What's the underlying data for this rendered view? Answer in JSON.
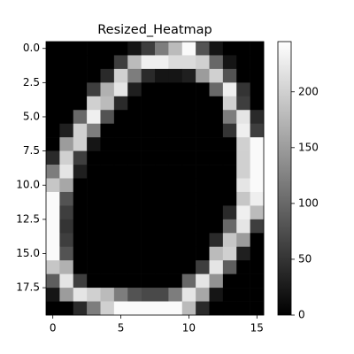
{
  "chart_data": {
    "type": "heatmap",
    "title": "Resized_Heatmap",
    "colormap": "gray",
    "z": [
      [
        0,
        0,
        0,
        0,
        0,
        0,
        20,
        60,
        120,
        180,
        240,
        80,
        20,
        0,
        0,
        0
      ],
      [
        0,
        0,
        0,
        0,
        0,
        60,
        180,
        230,
        230,
        210,
        210,
        200,
        100,
        20,
        0,
        0
      ],
      [
        0,
        0,
        0,
        0,
        40,
        200,
        120,
        40,
        20,
        20,
        30,
        150,
        200,
        80,
        0,
        0
      ],
      [
        0,
        0,
        0,
        60,
        170,
        220,
        30,
        0,
        0,
        0,
        0,
        0,
        100,
        230,
        50,
        0
      ],
      [
        0,
        0,
        0,
        200,
        180,
        40,
        0,
        0,
        0,
        0,
        0,
        0,
        0,
        200,
        60,
        0
      ],
      [
        0,
        0,
        100,
        230,
        80,
        0,
        0,
        0,
        0,
        0,
        0,
        0,
        0,
        120,
        220,
        40
      ],
      [
        0,
        30,
        200,
        120,
        0,
        0,
        0,
        0,
        0,
        0,
        0,
        0,
        0,
        50,
        230,
        60
      ],
      [
        0,
        150,
        200,
        20,
        0,
        0,
        0,
        0,
        0,
        0,
        0,
        0,
        0,
        0,
        200,
        240
      ],
      [
        40,
        200,
        60,
        0,
        0,
        0,
        0,
        0,
        0,
        0,
        0,
        0,
        0,
        0,
        200,
        240
      ],
      [
        120,
        220,
        30,
        0,
        0,
        0,
        0,
        0,
        0,
        0,
        0,
        0,
        0,
        0,
        200,
        240
      ],
      [
        190,
        160,
        0,
        0,
        0,
        0,
        0,
        0,
        0,
        0,
        0,
        0,
        0,
        0,
        220,
        240
      ],
      [
        240,
        80,
        0,
        0,
        0,
        0,
        0,
        0,
        0,
        0,
        0,
        0,
        0,
        0,
        190,
        230
      ],
      [
        240,
        60,
        0,
        0,
        0,
        0,
        0,
        0,
        0,
        0,
        0,
        0,
        0,
        40,
        230,
        180
      ],
      [
        240,
        50,
        0,
        0,
        0,
        0,
        0,
        0,
        0,
        0,
        0,
        0,
        0,
        100,
        220,
        60
      ],
      [
        240,
        60,
        0,
        0,
        0,
        0,
        0,
        0,
        0,
        0,
        0,
        0,
        40,
        190,
        150,
        0
      ],
      [
        240,
        80,
        0,
        0,
        0,
        0,
        0,
        0,
        0,
        0,
        0,
        0,
        180,
        200,
        30,
        0
      ],
      [
        190,
        170,
        0,
        0,
        0,
        0,
        0,
        0,
        0,
        0,
        0,
        60,
        220,
        90,
        0,
        0
      ],
      [
        90,
        220,
        60,
        0,
        0,
        0,
        0,
        0,
        0,
        0,
        100,
        220,
        140,
        0,
        0,
        0
      ],
      [
        20,
        150,
        220,
        200,
        180,
        120,
        80,
        70,
        70,
        120,
        220,
        160,
        20,
        0,
        0,
        0
      ],
      [
        0,
        0,
        40,
        120,
        200,
        240,
        240,
        240,
        240,
        240,
        180,
        40,
        0,
        0,
        0,
        0
      ]
    ],
    "xlim": [
      -0.5,
      15.5
    ],
    "ylim": [
      19.5,
      -0.5
    ],
    "xticks": [
      0,
      5,
      10,
      15
    ],
    "yticks": [
      {
        "value": 0,
        "label": "0.0"
      },
      {
        "value": 2.5,
        "label": "2.5"
      },
      {
        "value": 5,
        "label": "5.0"
      },
      {
        "value": 7.5,
        "label": "7.5"
      },
      {
        "value": 10,
        "label": "10.0"
      },
      {
        "value": 12.5,
        "label": "12.5"
      },
      {
        "value": 15,
        "label": "15.0"
      },
      {
        "value": 17.5,
        "label": "17.5"
      }
    ],
    "clim": [
      0,
      245
    ],
    "cticks": [
      0,
      50,
      100,
      150,
      200
    ]
  }
}
